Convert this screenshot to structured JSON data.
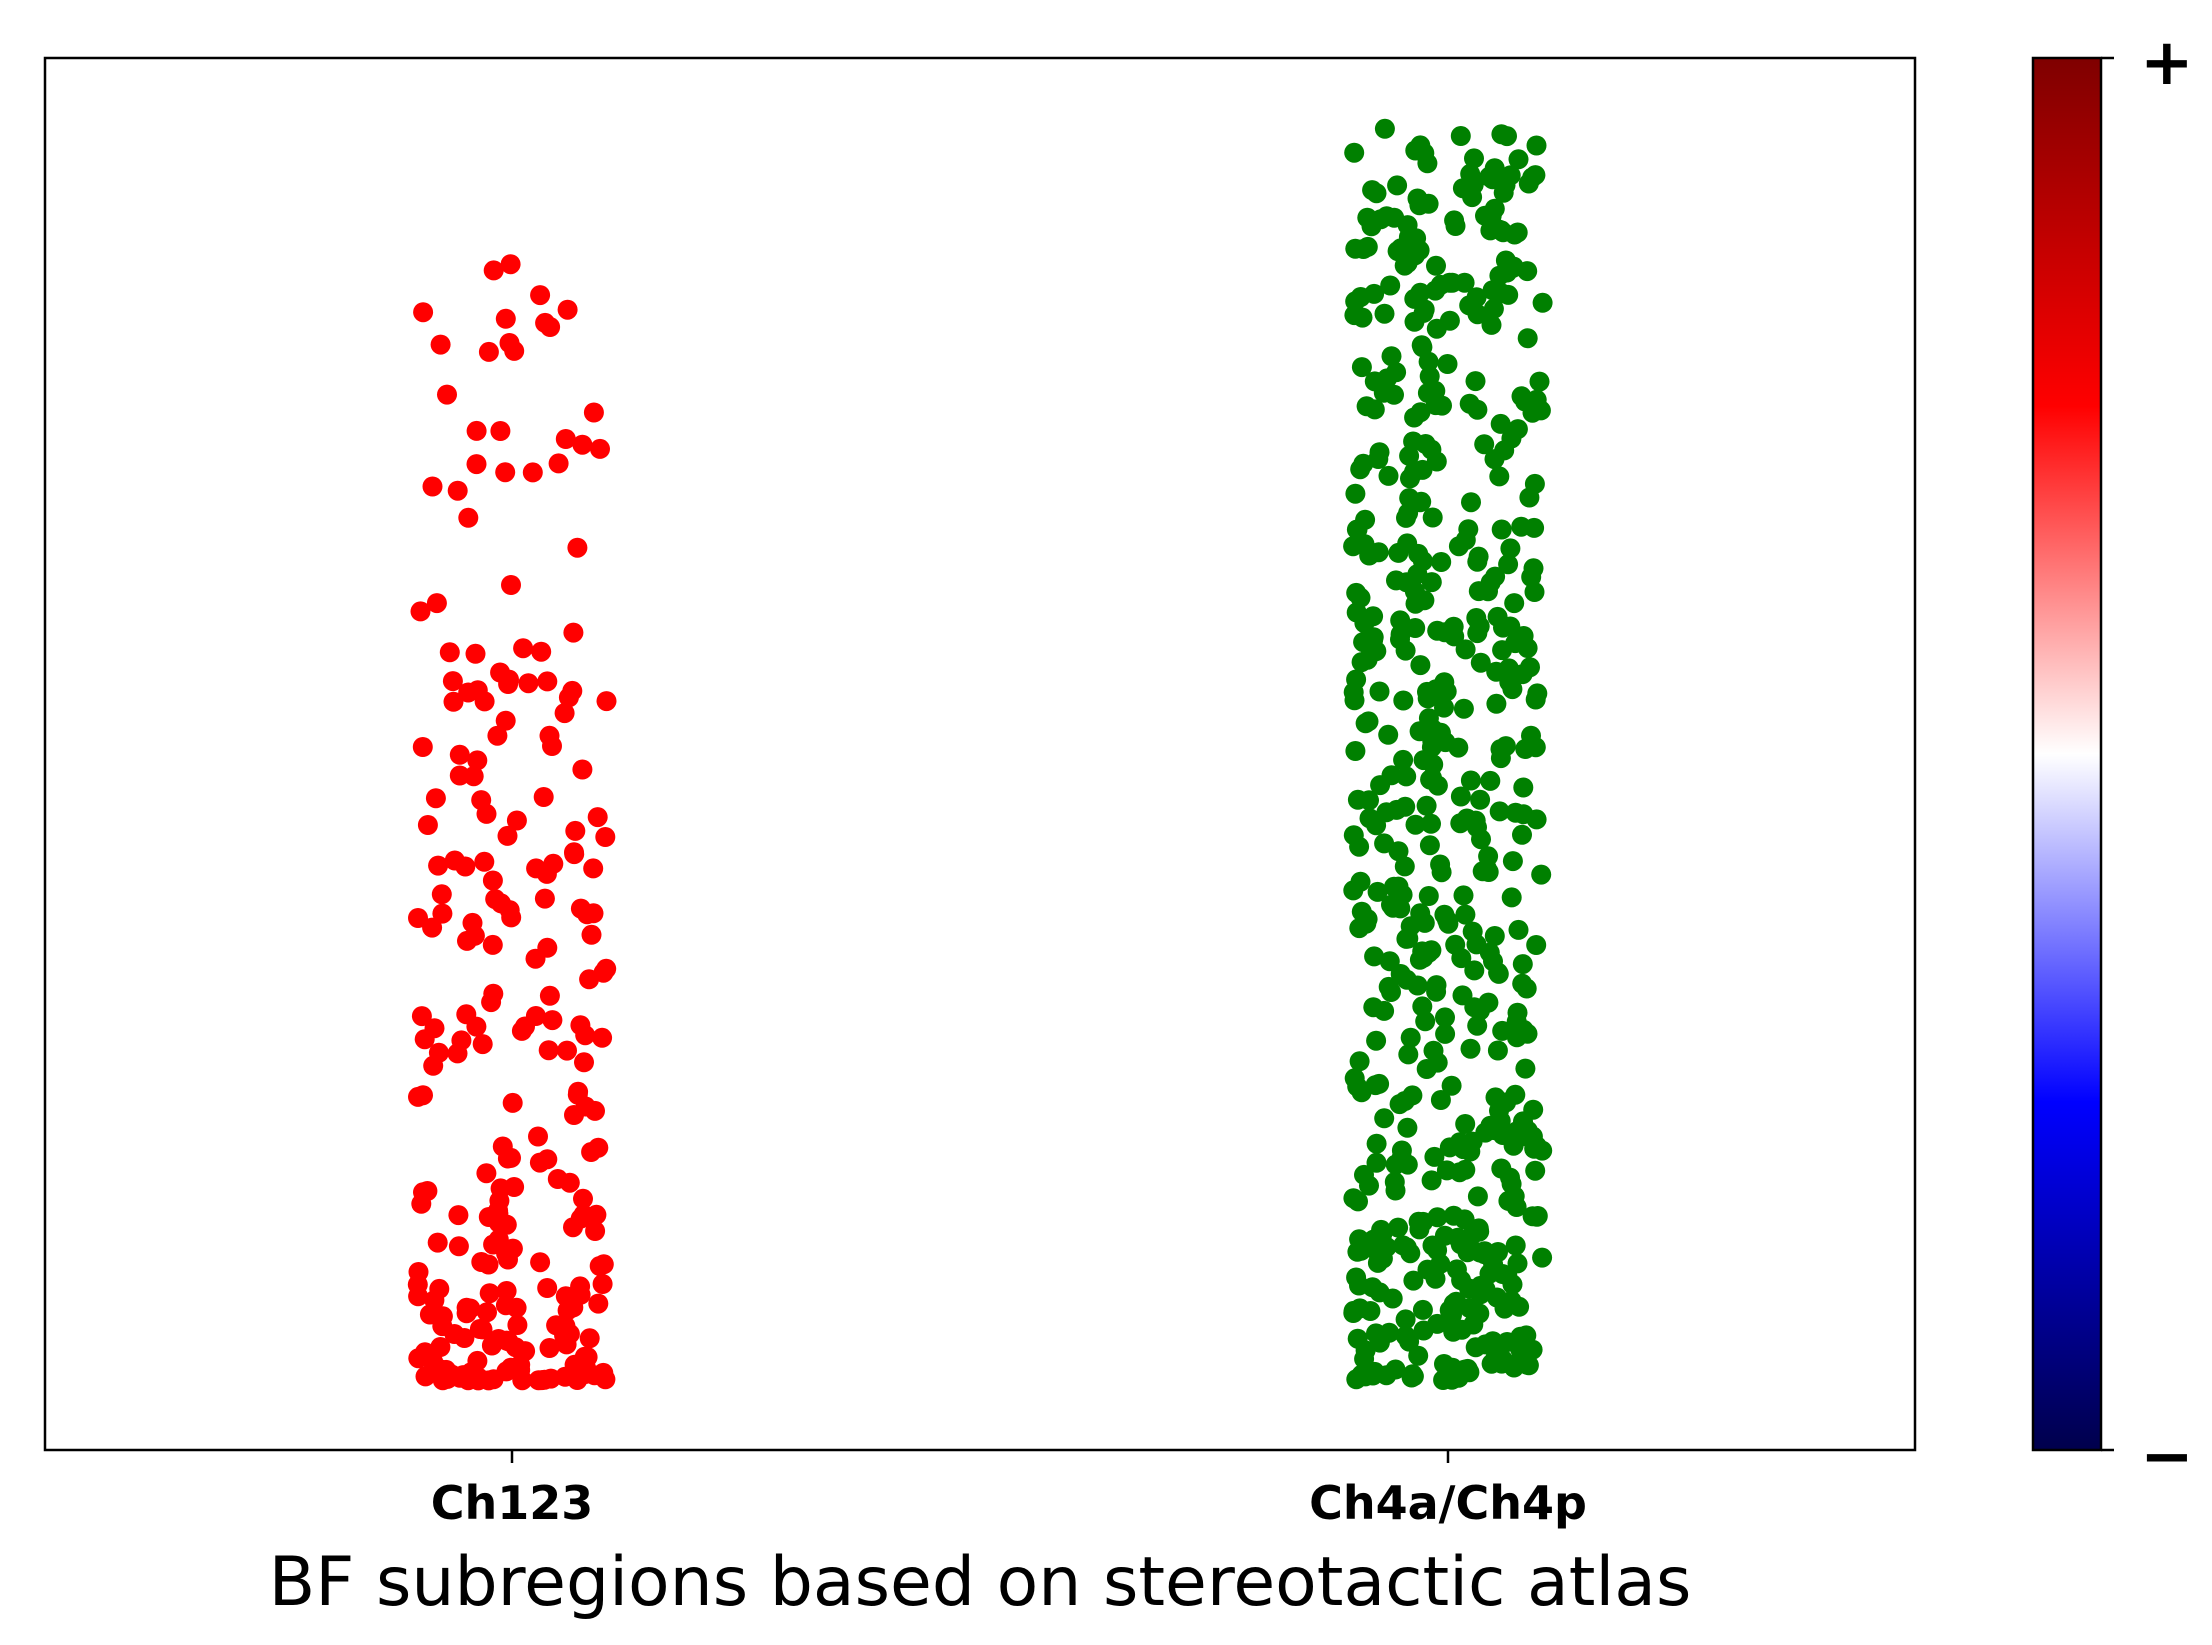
{
  "chart_data": {
    "type": "scatter",
    "title": "",
    "xlabel": "BF subregions based on stereotactic atlas",
    "ylabel": "",
    "categories": [
      "Ch123",
      "Ch4a/Ch4p"
    ],
    "yticks_shown": false,
    "grid": false,
    "legend": "none",
    "ylim": [
      0,
      1
    ],
    "series": [
      {
        "category": "Ch123",
        "color": "#ff0000",
        "n_points": 260,
        "y_max": 0.86,
        "y_min": 0.05,
        "density": "heaviest near the bottom, sparse above 0.5"
      },
      {
        "category": "Ch4a/Ch4p",
        "color": "#008000",
        "n_points": 600,
        "y_max": 0.95,
        "y_min": 0.05,
        "density": "spread over the full range, densest near the bottom"
      }
    ],
    "colorbar": {
      "colormap": "seismic",
      "colors": [
        "#00004c",
        "#0000ff",
        "#ffffff",
        "#ff0000",
        "#7f0000"
      ],
      "top_label": "+",
      "bottom_label": "−"
    }
  }
}
